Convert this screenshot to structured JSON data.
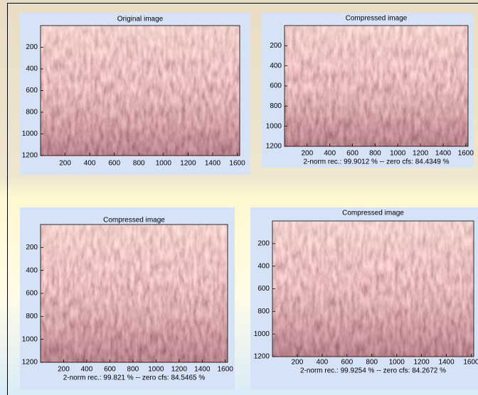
{
  "panels": [
    {
      "title": "Original image",
      "yticks": [
        200,
        400,
        600,
        800,
        1000,
        1200
      ],
      "xticks": [
        200,
        400,
        600,
        800,
        1000,
        1200,
        1400,
        1600
      ]
    },
    {
      "title": "Compressed image",
      "yticks": [
        200,
        400,
        600,
        800,
        1000,
        1200
      ],
      "xticks": [
        200,
        400,
        600,
        800,
        1000,
        1200,
        1400,
        1600
      ],
      "caption": "2-norm rec.: 99.9012 %  -- zero cfs: 84.4349 %"
    },
    {
      "title": "Compressed image",
      "yticks": [
        200,
        400,
        600,
        800,
        1000,
        1200
      ],
      "xticks": [
        200,
        400,
        600,
        800,
        1000,
        1200,
        1400,
        1600
      ],
      "caption": "2-norm rec.: 99.821 %  -- zero cfs: 84.5465 %"
    },
    {
      "title": "Compressed image",
      "yticks": [
        200,
        400,
        600,
        800,
        1000,
        1200
      ],
      "xticks": [
        200,
        400,
        600,
        800,
        1000,
        1200,
        1400,
        1600
      ],
      "caption": "2-norm rec.: 99.9254 %  -- zero cfs: 84.2672 %"
    }
  ]
}
